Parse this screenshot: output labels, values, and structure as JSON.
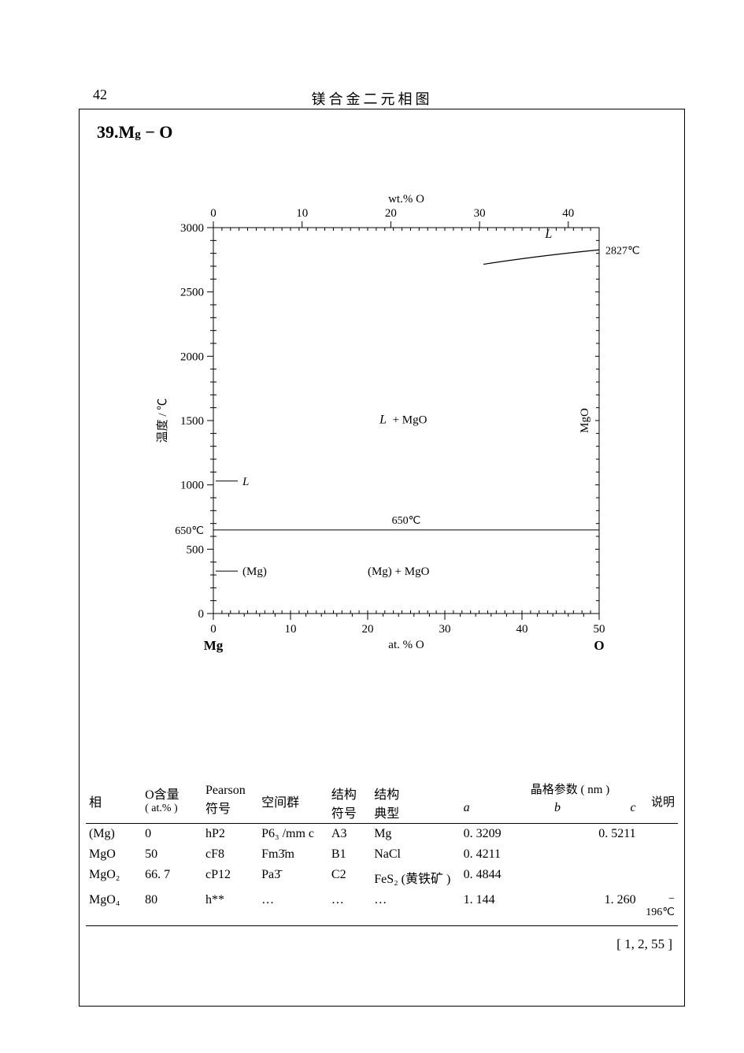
{
  "page": {
    "number": "42",
    "header": "镁合金二元相图",
    "title_prefix": "39.M",
    "title_sub": "g",
    "title_suffix": " − O"
  },
  "diagram": {
    "top_axis_label": "wt.% O",
    "top_ticks": [
      "0",
      "10",
      "20",
      "30",
      "40"
    ],
    "top_tick_x": [
      0,
      10,
      20,
      30,
      40
    ],
    "bottom_axis_label": "at. % O",
    "bottom_ticks": [
      "0",
      "10",
      "20",
      "30",
      "40",
      "50"
    ],
    "bottom_tick_x": [
      0,
      10,
      20,
      30,
      40,
      50
    ],
    "left_ticks": [
      "0",
      "500",
      "1000",
      "1500",
      "2000",
      "2500",
      "3000"
    ],
    "left_tick_y": [
      0,
      500,
      1000,
      1500,
      2000,
      2500,
      3000
    ],
    "y_axis_label": "温度 / ℃",
    "left_endpoint": "Mg",
    "right_endpoint": "O",
    "right_temp_label": "2827℃",
    "region_L": "L",
    "region_L_MgO": "L + MgO",
    "region_Mg_MgO": "(Mg) + MgO",
    "arrow_L": "L",
    "arrow_Mg": "(Mg)",
    "interior_temp": "650℃",
    "left_650": "650℃",
    "right_vert": "MgO",
    "x_range_bottom": [
      0,
      50
    ],
    "y_range": [
      0,
      3000
    ],
    "liquidus_curve": {
      "x": [
        35,
        42,
        50
      ],
      "y": [
        2715,
        2780,
        2827
      ]
    },
    "horiz_650_y": 650,
    "top_frame_y": 3000,
    "mgo_line_x": 50,
    "axis_color": "#000000",
    "tick_len": 5,
    "minor_tick_count_x": 4,
    "minor_tick_count_y": 4
  },
  "table": {
    "header": {
      "phase": "相",
      "o_content_top": "O含量",
      "o_content_bot": "( at.% )",
      "pearson_top": "Pearson",
      "pearson_bot": "符号",
      "space_group": "空间群",
      "struct_sym_top": "结构",
      "struct_sym_bot": "符号",
      "struct_type_top": "结构",
      "struct_type_bot": "典型",
      "lattice_title": "晶格参数 ( nm )",
      "a": "a",
      "b": "b",
      "c": "c",
      "note": "说明"
    },
    "rows": [
      {
        "phase": "(Mg)",
        "o": "0",
        "pearson": "hP2",
        "sg": "P6₃ /mm c",
        "sym": "A3",
        "type": "Mg",
        "a": "0. 3209",
        "b": "",
        "c": "0. 5211",
        "note": ""
      },
      {
        "phase": "MgO",
        "o": "50",
        "pearson": "cF8",
        "sg": "Fm3̄m",
        "sym": "B1",
        "type": "NaCl",
        "a": "0. 4211",
        "b": "",
        "c": "",
        "note": ""
      },
      {
        "phase": "MgO₂",
        "o": "66. 7",
        "pearson": "cP12",
        "sg": "Pa3̄",
        "sym": "C2",
        "type": "FeS₂ (黄铁矿 )",
        "a": "0. 4844",
        "b": "",
        "c": "",
        "note": ""
      },
      {
        "phase": "MgO₄",
        "o": "80",
        "pearson": "h**",
        "sg": "…",
        "sym": "…",
        "type": "…",
        "a": "1. 144",
        "b": "",
        "c": "1. 260",
        "note": "− 196℃"
      }
    ]
  },
  "reference": "[ 1, 2, 55 ]"
}
